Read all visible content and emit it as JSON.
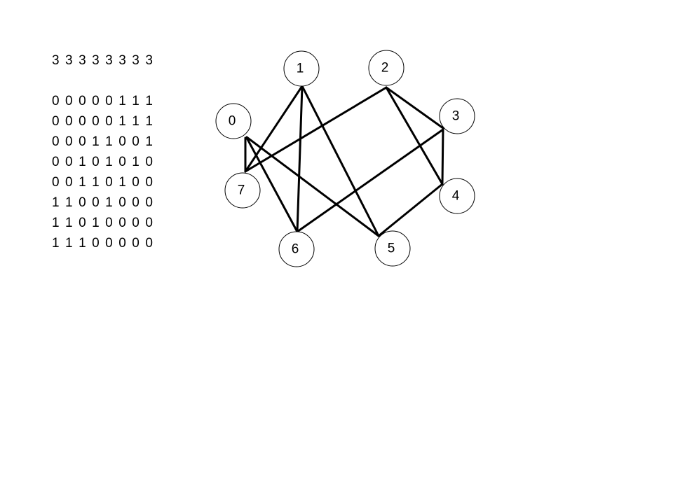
{
  "degree_sequence": "3 3 3 3 3 3 3 3",
  "adjacency_matrix": [
    "0 0 0 0 0 1 1 1",
    "0 0 0 0 0 1 1 1",
    "0 0 0 1 1 0 0 1",
    "0 0 1 0 1 0 1 0",
    "0 0 1 1 0 1 0 0",
    "1 1 0 0 1 0 0 0",
    "1 1 0 1 0 0 0 0",
    "1 1 1 0 0 0 0 0"
  ],
  "graph": {
    "nodes": [
      {
        "id": "0",
        "label": "0"
      },
      {
        "id": "1",
        "label": "1"
      },
      {
        "id": "2",
        "label": "2"
      },
      {
        "id": "3",
        "label": "3"
      },
      {
        "id": "4",
        "label": "4"
      },
      {
        "id": "5",
        "label": "5"
      },
      {
        "id": "6",
        "label": "6"
      },
      {
        "id": "7",
        "label": "7"
      }
    ],
    "edges": [
      [
        "0",
        "5"
      ],
      [
        "0",
        "6"
      ],
      [
        "0",
        "7"
      ],
      [
        "1",
        "5"
      ],
      [
        "1",
        "6"
      ],
      [
        "1",
        "7"
      ],
      [
        "2",
        "3"
      ],
      [
        "2",
        "4"
      ],
      [
        "2",
        "7"
      ],
      [
        "3",
        "4"
      ],
      [
        "3",
        "6"
      ],
      [
        "4",
        "5"
      ]
    ]
  }
}
